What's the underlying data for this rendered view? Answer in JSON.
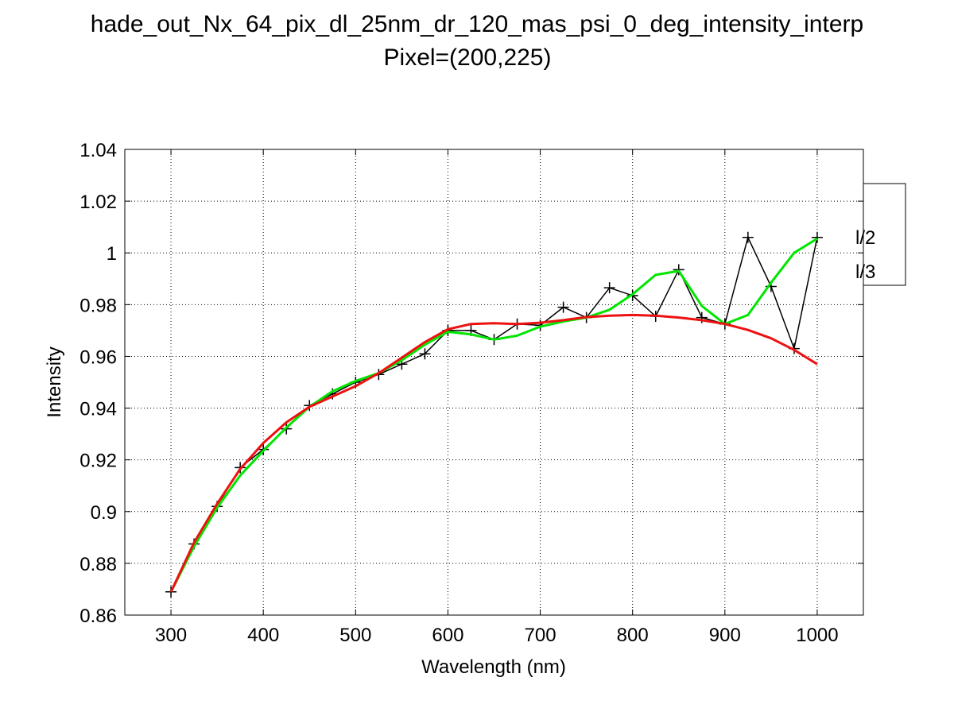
{
  "chart_data": {
    "type": "line",
    "title_line1": "hade_out_Nx_64_pix_dl_25nm_dr_120_mas_psi_0_deg_intensity_interp",
    "title_line2": "Pixel=(200,225)",
    "xlabel": "Wavelength (nm)",
    "ylabel": "Intensity",
    "xlim": [
      250,
      1050
    ],
    "ylim": [
      0.86,
      1.04
    ],
    "xticks": [
      300,
      400,
      500,
      600,
      700,
      800,
      900,
      1000
    ],
    "xtick_labels": [
      "300",
      "400",
      "500",
      "600",
      "700",
      "800",
      "900",
      "1000"
    ],
    "yticks": [
      0.86,
      0.88,
      0.9,
      0.92,
      0.94,
      0.96,
      0.98,
      1,
      1.02,
      1.04
    ],
    "ytick_labels": [
      "0.86",
      "0.88",
      "0.9",
      "0.92",
      "0.94",
      "0.96",
      "0.98",
      "1",
      "1.02",
      "1.04"
    ],
    "grid": true,
    "legend_position": "right, partly clipped",
    "legend_entries": [
      "l/2",
      "l/3"
    ],
    "series": [
      {
        "color": "#000000",
        "marker": "+",
        "x": [
          300,
          325,
          350,
          375,
          400,
          425,
          450,
          475,
          500,
          525,
          550,
          575,
          600,
          625,
          650,
          675,
          700,
          725,
          750,
          775,
          800,
          825,
          850,
          875,
          900,
          925,
          950,
          975,
          1000
        ],
        "values": [
          0.869,
          0.8875,
          0.902,
          0.917,
          0.924,
          0.932,
          0.941,
          0.9455,
          0.95,
          0.953,
          0.957,
          0.961,
          0.97,
          0.97,
          0.9665,
          0.9725,
          0.972,
          0.979,
          0.975,
          0.9865,
          0.9835,
          0.9755,
          0.9935,
          0.975,
          0.9725,
          1.006,
          0.987,
          0.963,
          1.006
        ]
      },
      {
        "color": "#00e600",
        "x": [
          300,
          325,
          350,
          375,
          400,
          425,
          450,
          475,
          500,
          525,
          550,
          575,
          600,
          625,
          650,
          675,
          700,
          725,
          750,
          775,
          800,
          825,
          850,
          875,
          900,
          925,
          950,
          975,
          1000
        ],
        "values": [
          0.869,
          0.8865,
          0.9015,
          0.914,
          0.9235,
          0.9325,
          0.9405,
          0.9465,
          0.9505,
          0.9535,
          0.9585,
          0.9645,
          0.9695,
          0.9685,
          0.9665,
          0.968,
          0.9715,
          0.9735,
          0.975,
          0.978,
          0.984,
          0.9915,
          0.993,
          0.9795,
          0.9725,
          0.976,
          0.9885,
          1.0,
          1.0055
        ]
      },
      {
        "color": "#ee1111",
        "x": [
          300,
          325,
          350,
          375,
          400,
          425,
          450,
          475,
          500,
          525,
          550,
          575,
          600,
          625,
          650,
          675,
          700,
          725,
          750,
          775,
          800,
          825,
          850,
          875,
          900,
          925,
          950,
          975,
          1000
        ],
        "values": [
          0.869,
          0.888,
          0.903,
          0.9165,
          0.9265,
          0.9345,
          0.9405,
          0.9445,
          0.9485,
          0.9535,
          0.9595,
          0.9655,
          0.9705,
          0.9725,
          0.9728,
          0.9725,
          0.973,
          0.974,
          0.9752,
          0.9757,
          0.976,
          0.9757,
          0.975,
          0.974,
          0.9725,
          0.9702,
          0.967,
          0.9625,
          0.957
        ]
      }
    ]
  }
}
